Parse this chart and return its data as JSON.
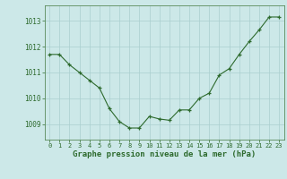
{
  "x": [
    0,
    1,
    2,
    3,
    4,
    5,
    6,
    7,
    8,
    9,
    10,
    11,
    12,
    13,
    14,
    15,
    16,
    17,
    18,
    19,
    20,
    21,
    22,
    23
  ],
  "y": [
    1011.7,
    1011.7,
    1011.3,
    1011.0,
    1010.7,
    1010.4,
    1009.6,
    1009.1,
    1008.85,
    1008.85,
    1009.3,
    1009.2,
    1009.15,
    1009.55,
    1009.55,
    1010.0,
    1010.2,
    1010.9,
    1011.15,
    1011.7,
    1012.2,
    1012.65,
    1013.15,
    1013.15
  ],
  "line_color": "#2d6a2d",
  "marker_color": "#2d6a2d",
  "bg_color": "#cce8e8",
  "grid_color": "#aacfcf",
  "title": "Graphe pression niveau de la mer (hPa)",
  "yticks": [
    1009,
    1010,
    1011,
    1012,
    1013
  ],
  "ylim": [
    1008.4,
    1013.6
  ],
  "xlim": [
    -0.5,
    23.5
  ]
}
